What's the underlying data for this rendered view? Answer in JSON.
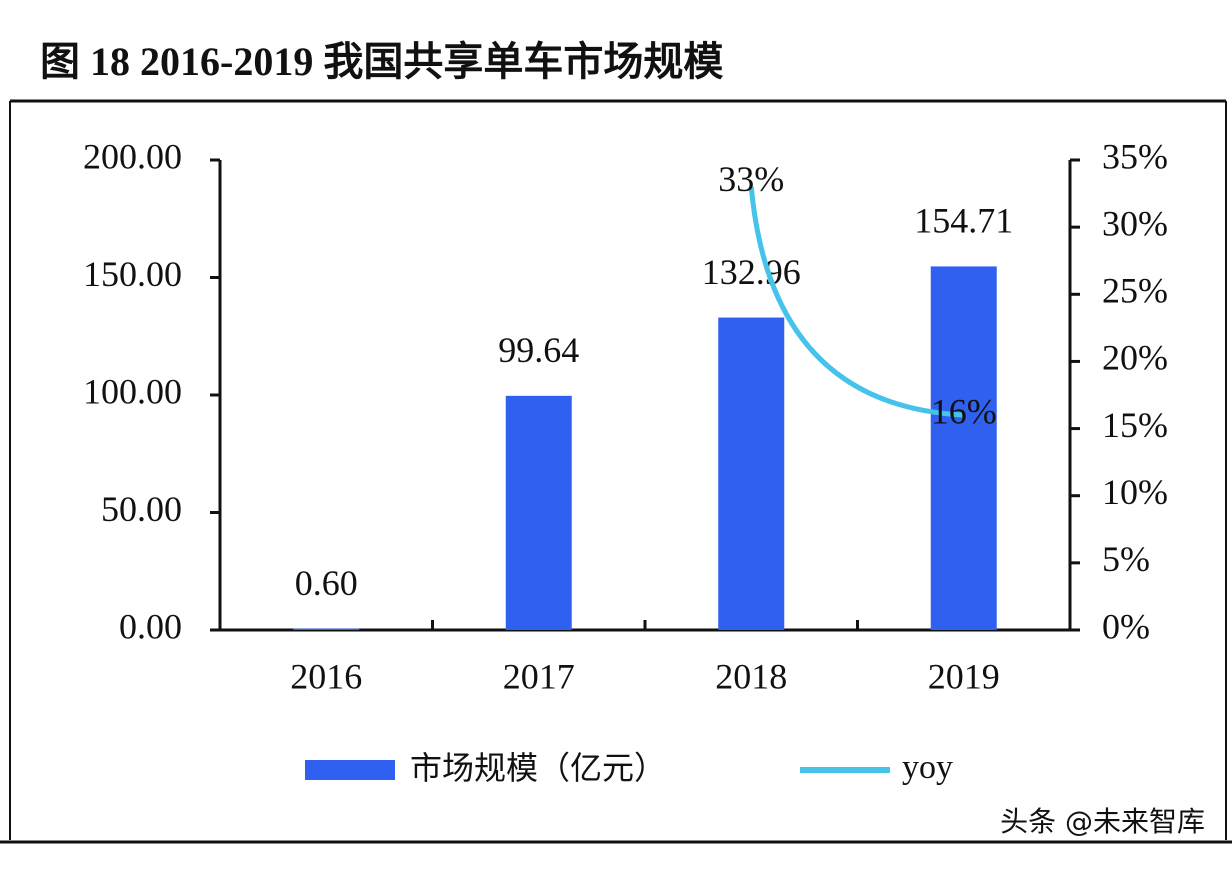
{
  "chart_data": {
    "type": "bar",
    "title": "图 18 2016-2019 我国共享单车市场规模",
    "categories": [
      "2016",
      "2017",
      "2018",
      "2019"
    ],
    "series": [
      {
        "name": "市场规模（亿元）",
        "color": "#2f60ef",
        "values": [
          0.6,
          99.64,
          132.96,
          154.71
        ],
        "value_labels": [
          "0.60",
          "99.64",
          "132.96",
          "154.71"
        ]
      },
      {
        "name": "yoy",
        "color": "#45c3ea",
        "type": "line",
        "axis": "y2",
        "values": [
          null,
          null,
          33,
          16
        ],
        "value_labels": [
          null,
          null,
          "33%",
          "16%"
        ]
      }
    ],
    "ylim": [
      0,
      200
    ],
    "yticks": [
      {
        "value": 0,
        "label": "0.00"
      },
      {
        "value": 50,
        "label": "50.00"
      },
      {
        "value": 100,
        "label": "100.00"
      },
      {
        "value": 150,
        "label": "150.00"
      },
      {
        "value": 200,
        "label": "200.00"
      }
    ],
    "y2lim": [
      0,
      35
    ],
    "y2ticks": [
      {
        "value": 0,
        "label": "0%"
      },
      {
        "value": 5,
        "label": "5%"
      },
      {
        "value": 10,
        "label": "10%"
      },
      {
        "value": 15,
        "label": "15%"
      },
      {
        "value": 20,
        "label": "20%"
      },
      {
        "value": 25,
        "label": "25%"
      },
      {
        "value": 30,
        "label": "30%"
      },
      {
        "value": 35,
        "label": "35%"
      }
    ],
    "legend": "bottom",
    "watermark": "头条 @未来智库"
  }
}
